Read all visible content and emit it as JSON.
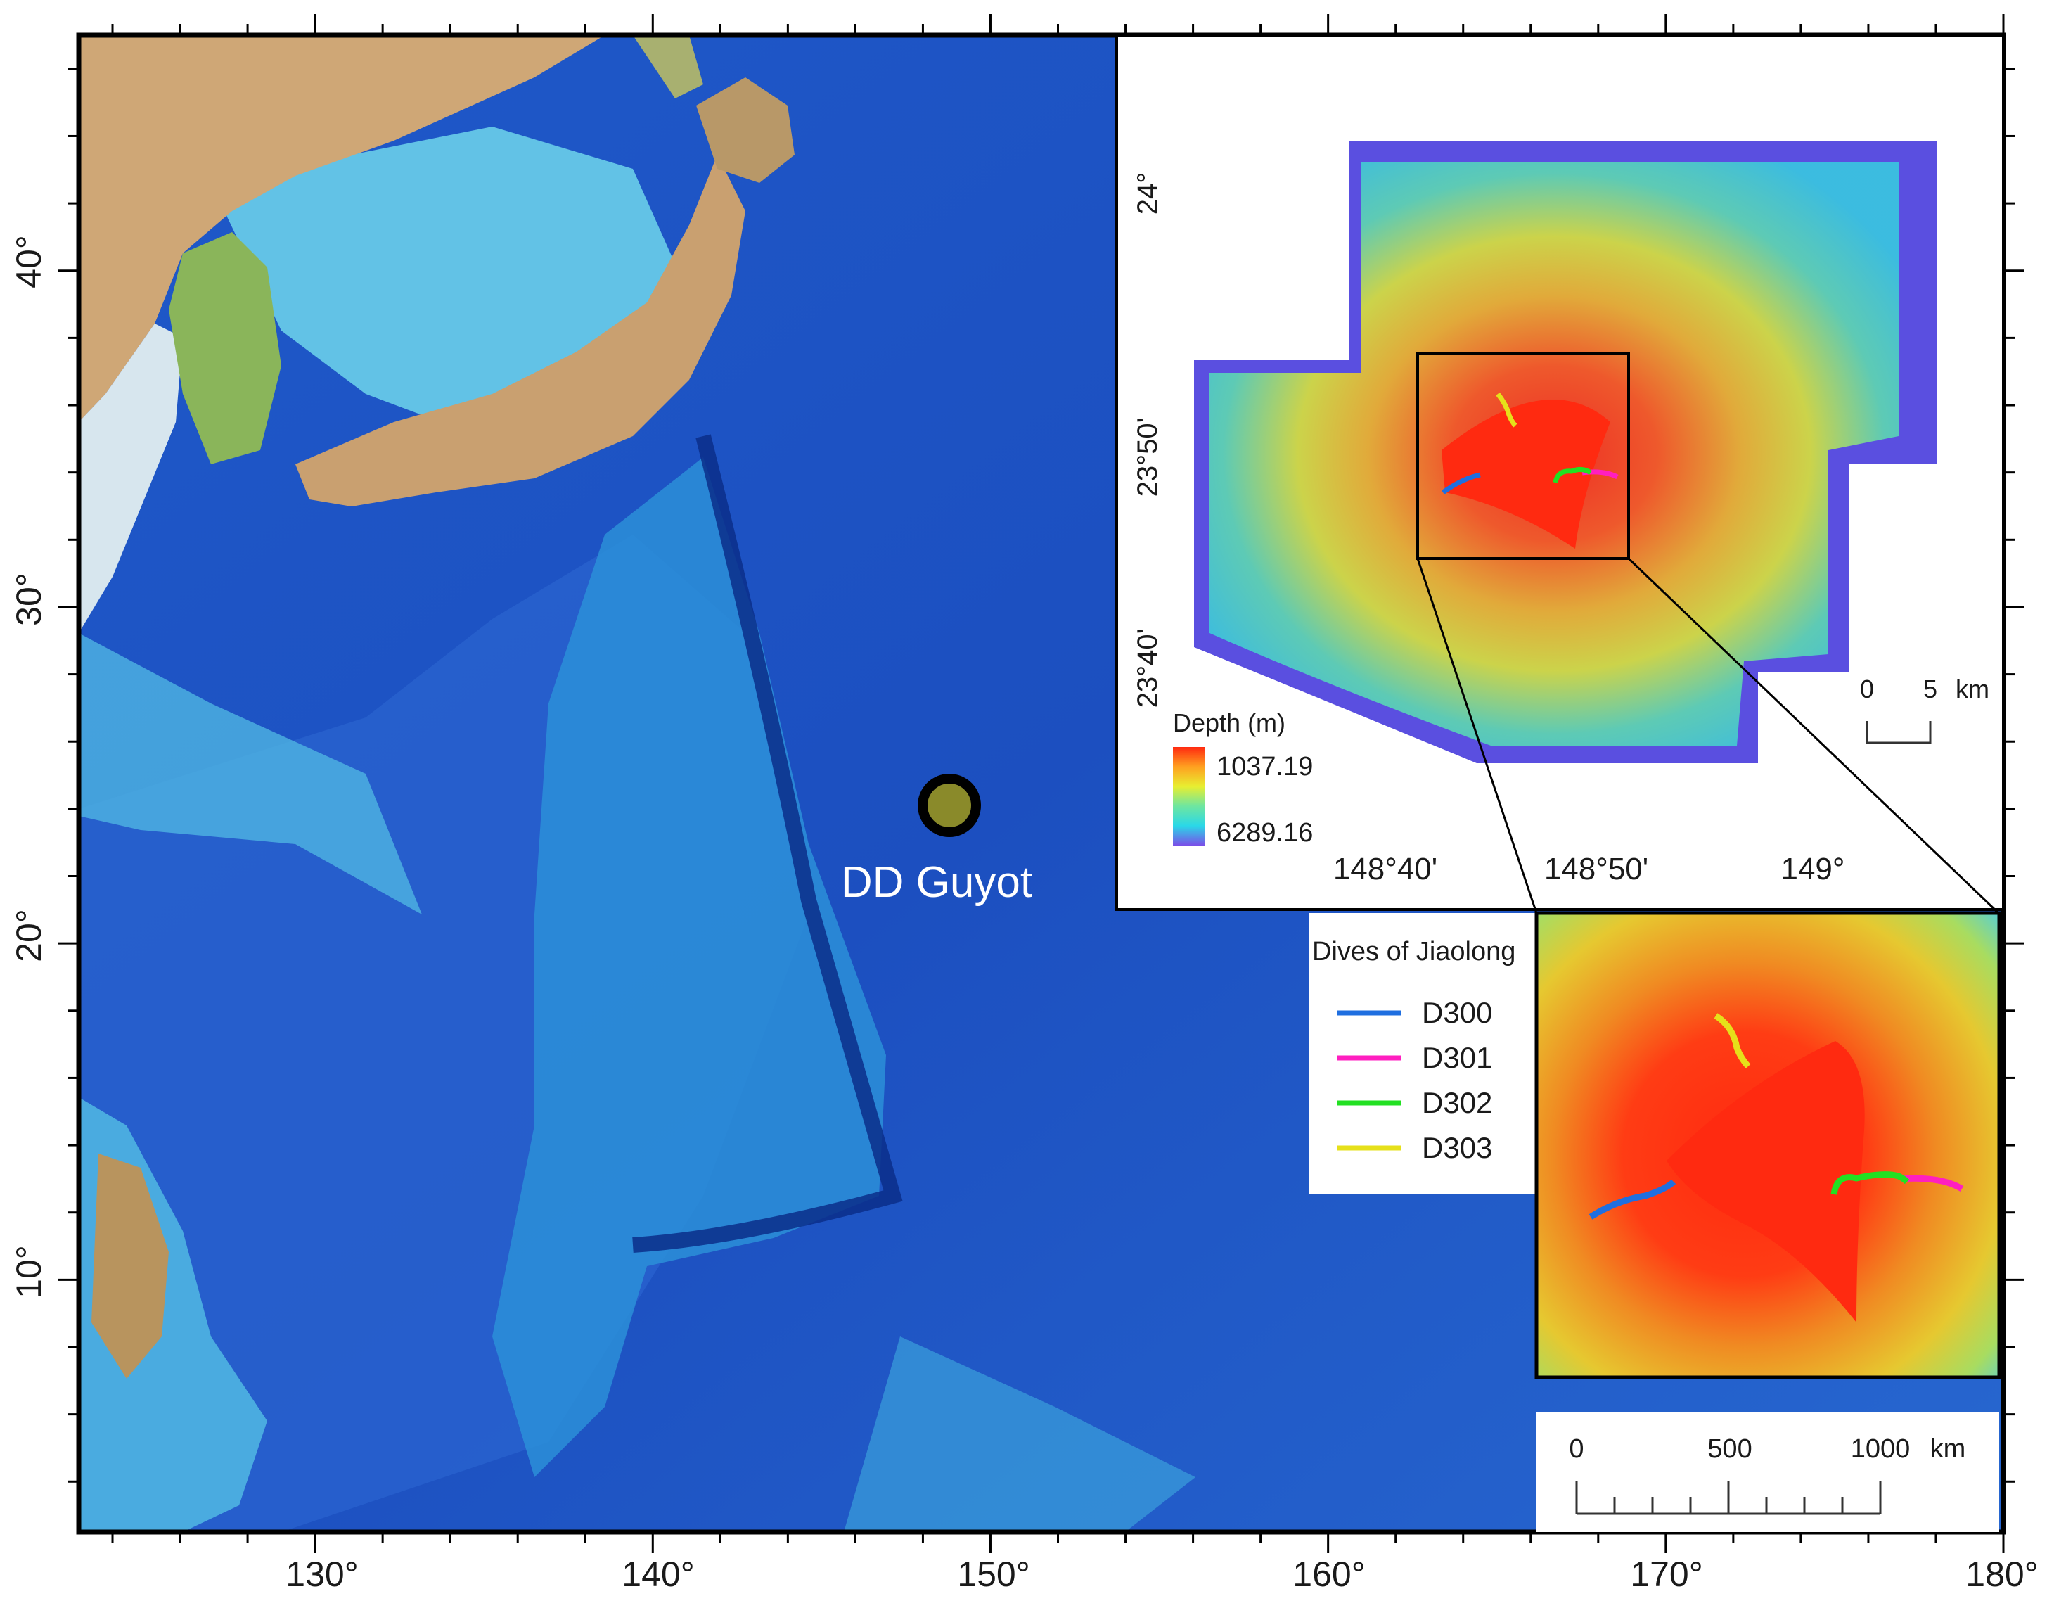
{
  "main_map": {
    "lon_ticks": [
      "130°",
      "140°",
      "150°",
      "160°",
      "170°",
      "180°"
    ],
    "lat_ticks": [
      "40°",
      "30°",
      "20°",
      "10°"
    ],
    "site_label": "DD Guyot",
    "site_marker_color": "#8a8a2a"
  },
  "inset": {
    "lat_ticks": [
      "24°",
      "23°50'",
      "23°40'"
    ],
    "lon_ticks": [
      "148°40'",
      "148°50'",
      "149°"
    ],
    "depth_title": "Depth (m)",
    "depth_max": "1037.19",
    "depth_min": "6289.16",
    "scale_zero": "0",
    "scale_five": "5",
    "scale_unit": "km"
  },
  "legend": {
    "title": "Dives of Jiaolong",
    "items": [
      {
        "label": "D300",
        "color": "#1f6fe0"
      },
      {
        "label": "D301",
        "color": "#ff1fc0"
      },
      {
        "label": "D302",
        "color": "#22e022"
      },
      {
        "label": "D303",
        "color": "#e6e01a"
      }
    ]
  },
  "scale_bar": {
    "labels": [
      "0",
      "500",
      "1000"
    ],
    "unit": "km"
  }
}
